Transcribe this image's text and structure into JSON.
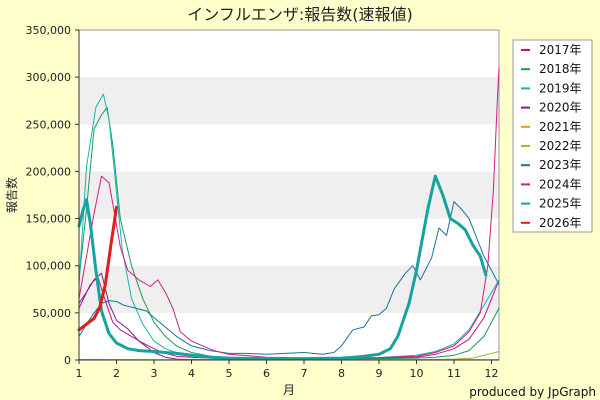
{
  "chart_data": {
    "type": "line",
    "title": "インフルエンザ:報告数(速報値)",
    "xlabel": "月",
    "ylabel": "報告数",
    "credit": "produced by JpGraph",
    "xlim": [
      1,
      12.2
    ],
    "ylim": [
      0,
      350000
    ],
    "x_ticks": [
      "1",
      "2",
      "3",
      "4",
      "5",
      "6",
      "7",
      "8",
      "9",
      "10",
      "11",
      "12"
    ],
    "y_ticks": [
      "0",
      "50,000",
      "100,000",
      "150,000",
      "200,000",
      "250,000",
      "300,000",
      "350,000"
    ],
    "grid": "horizontal bands",
    "legend_position": "right",
    "colors": {
      "background": "#ffffcc",
      "plot_band_light": "#ffffff",
      "plot_band_dark": "#efefef"
    },
    "series": [
      {
        "name": "2017年",
        "color": "#c2127a",
        "width": 1,
        "points": [
          [
            1.0,
            55000
          ],
          [
            1.3,
            80000
          ],
          [
            1.5,
            88000
          ],
          [
            1.7,
            63000
          ],
          [
            1.9,
            40000
          ],
          [
            2.1,
            32000
          ],
          [
            2.4,
            25000
          ],
          [
            2.7,
            18000
          ],
          [
            3.0,
            12000
          ],
          [
            3.3,
            7000
          ],
          [
            3.6,
            4000
          ],
          [
            4.0,
            3000
          ],
          [
            4.5,
            2000
          ],
          [
            5.0,
            1500
          ],
          [
            6.0,
            1000
          ],
          [
            7.0,
            800
          ],
          [
            8.0,
            1000
          ],
          [
            9.0,
            2000
          ],
          [
            10.0,
            3000
          ],
          [
            10.5,
            6000
          ],
          [
            11.0,
            12000
          ],
          [
            11.4,
            22000
          ],
          [
            11.8,
            45000
          ],
          [
            12.1,
            75000
          ],
          [
            12.2,
            85000
          ]
        ]
      },
      {
        "name": "2018年",
        "color": "#159c59",
        "width": 1,
        "points": [
          [
            1.0,
            85000
          ],
          [
            1.2,
            160000
          ],
          [
            1.4,
            245000
          ],
          [
            1.6,
            260000
          ],
          [
            1.75,
            268000
          ],
          [
            1.9,
            228000
          ],
          [
            2.1,
            150000
          ],
          [
            2.4,
            100000
          ],
          [
            2.7,
            65000
          ],
          [
            3.0,
            40000
          ],
          [
            3.3,
            25000
          ],
          [
            3.6,
            15000
          ],
          [
            4.0,
            8000
          ],
          [
            4.5,
            4000
          ],
          [
            5.0,
            2000
          ],
          [
            6.0,
            1000
          ],
          [
            7.0,
            800
          ],
          [
            8.0,
            1000
          ],
          [
            9.0,
            1500
          ],
          [
            10.0,
            2000
          ],
          [
            10.5,
            3000
          ],
          [
            11.0,
            5000
          ],
          [
            11.4,
            10000
          ],
          [
            11.8,
            25000
          ],
          [
            12.2,
            55000
          ]
        ]
      },
      {
        "name": "2019年",
        "color": "#17b5b0",
        "width": 1,
        "points": [
          [
            1.0,
            80000
          ],
          [
            1.2,
            205000
          ],
          [
            1.45,
            268000
          ],
          [
            1.65,
            282000
          ],
          [
            1.8,
            255000
          ],
          [
            1.95,
            198000
          ],
          [
            2.15,
            118000
          ],
          [
            2.4,
            65000
          ],
          [
            2.7,
            38000
          ],
          [
            3.0,
            20000
          ],
          [
            3.3,
            12000
          ],
          [
            3.6,
            8000
          ],
          [
            4.0,
            6000
          ],
          [
            4.5,
            4000
          ],
          [
            5.0,
            3000
          ],
          [
            6.0,
            2000
          ],
          [
            7.0,
            1500
          ],
          [
            8.0,
            1500
          ],
          [
            9.0,
            2500
          ],
          [
            10.0,
            5000
          ],
          [
            10.5,
            9000
          ],
          [
            11.0,
            17000
          ],
          [
            11.4,
            32000
          ],
          [
            11.8,
            58000
          ],
          [
            12.2,
            85000
          ]
        ]
      },
      {
        "name": "2020年",
        "color": "#7a1f8a",
        "width": 1,
        "points": [
          [
            1.0,
            60000
          ],
          [
            1.2,
            72000
          ],
          [
            1.4,
            85000
          ],
          [
            1.6,
            92000
          ],
          [
            1.8,
            60000
          ],
          [
            2.0,
            42000
          ],
          [
            2.3,
            33000
          ],
          [
            2.6,
            20000
          ],
          [
            3.0,
            8000
          ],
          [
            3.3,
            3000
          ],
          [
            3.6,
            1000
          ],
          [
            4.0,
            500
          ],
          [
            5.0,
            200
          ],
          [
            6.0,
            100
          ],
          [
            8.0,
            100
          ],
          [
            10.0,
            100
          ],
          [
            12.2,
            100
          ]
        ]
      },
      {
        "name": "2021年",
        "color": "#d4a017",
        "width": 1,
        "points": [
          [
            1.0,
            500
          ],
          [
            3.0,
            300
          ],
          [
            6.0,
            100
          ],
          [
            9.0,
            100
          ],
          [
            12.2,
            100
          ]
        ]
      },
      {
        "name": "2022年",
        "color": "#a4b827",
        "width": 1,
        "points": [
          [
            1.0,
            100
          ],
          [
            3.0,
            100
          ],
          [
            6.0,
            200
          ],
          [
            9.0,
            300
          ],
          [
            10.5,
            500
          ],
          [
            11.0,
            1000
          ],
          [
            11.5,
            2000
          ],
          [
            12.0,
            7000
          ],
          [
            12.2,
            9000
          ]
        ]
      },
      {
        "name": "2023年",
        "color": "#17739c",
        "width": 1,
        "points": [
          [
            1.0,
            25000
          ],
          [
            1.2,
            38000
          ],
          [
            1.4,
            50000
          ],
          [
            1.6,
            60000
          ],
          [
            1.8,
            63000
          ],
          [
            2.0,
            62000
          ],
          [
            2.2,
            58000
          ],
          [
            2.5,
            55000
          ],
          [
            2.8,
            52000
          ],
          [
            3.0,
            45000
          ],
          [
            3.3,
            35000
          ],
          [
            3.6,
            25000
          ],
          [
            4.0,
            15000
          ],
          [
            4.5,
            10000
          ],
          [
            5.0,
            7000
          ],
          [
            5.5,
            7000
          ],
          [
            6.0,
            6000
          ],
          [
            6.5,
            7000
          ],
          [
            7.0,
            8000
          ],
          [
            7.5,
            6000
          ],
          [
            7.8,
            8000
          ],
          [
            8.0,
            15000
          ],
          [
            8.3,
            32000
          ],
          [
            8.6,
            35000
          ],
          [
            8.8,
            47000
          ],
          [
            9.0,
            48000
          ],
          [
            9.2,
            55000
          ],
          [
            9.4,
            75000
          ],
          [
            9.7,
            92000
          ],
          [
            9.9,
            100000
          ],
          [
            10.1,
            85000
          ],
          [
            10.4,
            108000
          ],
          [
            10.6,
            140000
          ],
          [
            10.8,
            132000
          ],
          [
            11.0,
            168000
          ],
          [
            11.2,
            160000
          ],
          [
            11.4,
            150000
          ],
          [
            11.6,
            130000
          ],
          [
            11.8,
            110000
          ],
          [
            12.0,
            95000
          ],
          [
            12.2,
            80000
          ]
        ]
      },
      {
        "name": "2024年",
        "color": "#d11f7c",
        "width": 1,
        "points": [
          [
            1.0,
            65000
          ],
          [
            1.2,
            110000
          ],
          [
            1.4,
            155000
          ],
          [
            1.6,
            195000
          ],
          [
            1.8,
            188000
          ],
          [
            1.95,
            155000
          ],
          [
            2.1,
            120000
          ],
          [
            2.3,
            95000
          ],
          [
            2.6,
            85000
          ],
          [
            2.9,
            78000
          ],
          [
            3.1,
            85000
          ],
          [
            3.3,
            72000
          ],
          [
            3.5,
            55000
          ],
          [
            3.7,
            30000
          ],
          [
            4.0,
            20000
          ],
          [
            4.3,
            15000
          ],
          [
            4.6,
            10000
          ],
          [
            5.0,
            6000
          ],
          [
            6.0,
            3000
          ],
          [
            7.0,
            2000
          ],
          [
            8.0,
            2000
          ],
          [
            9.0,
            2500
          ],
          [
            10.0,
            4000
          ],
          [
            10.5,
            8000
          ],
          [
            11.0,
            15000
          ],
          [
            11.4,
            30000
          ],
          [
            11.7,
            50000
          ],
          [
            11.9,
            100000
          ],
          [
            12.05,
            180000
          ],
          [
            12.15,
            270000
          ],
          [
            12.2,
            310000
          ]
        ]
      },
      {
        "name": "2025年",
        "color": "#14a3a0",
        "width": 3,
        "points": [
          [
            1.0,
            142000
          ],
          [
            1.1,
            158000
          ],
          [
            1.2,
            170000
          ],
          [
            1.3,
            145000
          ],
          [
            1.45,
            95000
          ],
          [
            1.6,
            52000
          ],
          [
            1.8,
            28000
          ],
          [
            2.0,
            18000
          ],
          [
            2.3,
            12000
          ],
          [
            2.6,
            10000
          ],
          [
            3.0,
            9000
          ],
          [
            3.3,
            8000
          ],
          [
            3.6,
            7000
          ],
          [
            4.0,
            5000
          ],
          [
            4.5,
            3000
          ],
          [
            5.0,
            2000
          ],
          [
            6.0,
            1500
          ],
          [
            7.0,
            1500
          ],
          [
            8.0,
            2000
          ],
          [
            8.5,
            3500
          ],
          [
            9.0,
            6000
          ],
          [
            9.3,
            12000
          ],
          [
            9.5,
            25000
          ],
          [
            9.8,
            60000
          ],
          [
            10.0,
            95000
          ],
          [
            10.3,
            160000
          ],
          [
            10.5,
            195000
          ],
          [
            10.7,
            175000
          ],
          [
            10.9,
            150000
          ],
          [
            11.1,
            145000
          ],
          [
            11.3,
            138000
          ],
          [
            11.5,
            122000
          ],
          [
            11.7,
            110000
          ],
          [
            11.85,
            90000
          ]
        ]
      },
      {
        "name": "2026年",
        "color": "#e01c1c",
        "width": 3,
        "points": [
          [
            1.0,
            32000
          ],
          [
            1.2,
            38000
          ],
          [
            1.4,
            44000
          ],
          [
            1.55,
            55000
          ],
          [
            1.7,
            80000
          ],
          [
            1.85,
            122000
          ],
          [
            2.0,
            162000
          ]
        ]
      }
    ]
  }
}
